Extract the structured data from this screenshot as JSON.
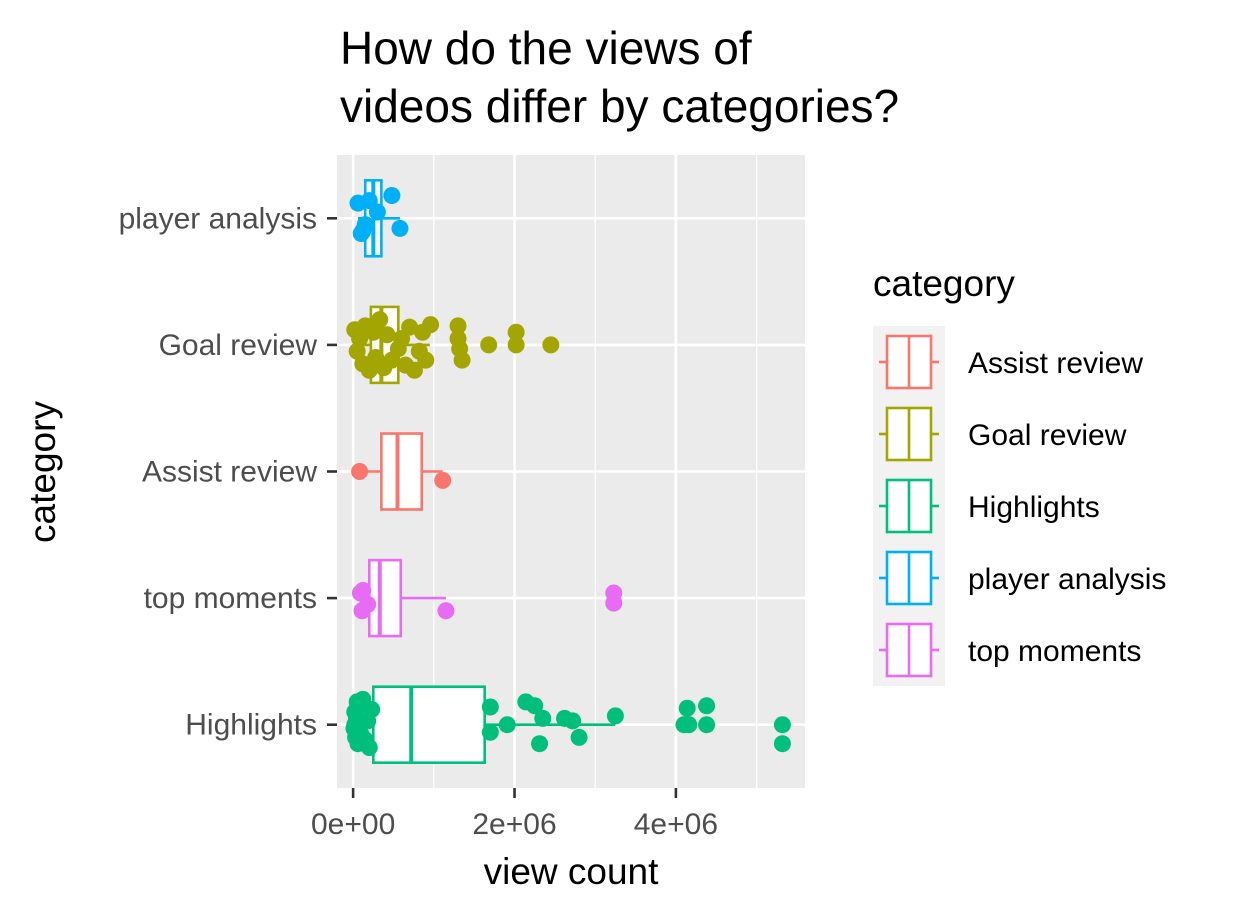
{
  "chart_data": {
    "type": "boxplot",
    "title": [
      "How do the views of",
      "videos differ by categories?"
    ],
    "xlabel": "view count",
    "ylabel": "category",
    "xlim": [
      -200000,
      5600000
    ],
    "x_ticks": [
      0,
      2000000,
      4000000
    ],
    "x_tick_labels": [
      "0e+00",
      "2e+06",
      "4e+06"
    ],
    "orientation": "horizontal",
    "grid": true,
    "legend": {
      "title": "category",
      "placement": "right",
      "entries": [
        {
          "label": "Assist review",
          "color": "#F8766D"
        },
        {
          "label": "Goal review",
          "color": "#A3A500"
        },
        {
          "label": "Highlights",
          "color": "#00BF7D"
        },
        {
          "label": "player analysis",
          "color": "#00B0F6"
        },
        {
          "label": "top moments",
          "color": "#E76BF3"
        }
      ]
    },
    "categories_top_to_bottom": [
      "player analysis",
      "Goal review",
      "Assist review",
      "top moments",
      "Highlights"
    ],
    "groups": [
      {
        "category": "player analysis",
        "color": "#00B0F6",
        "box": {
          "q1": 150000,
          "median": 250000,
          "q3": 350000,
          "whisker_low": 60000,
          "whisker_high": 580000
        },
        "points": [
          [
            100000,
            0.12
          ],
          [
            60000,
            -0.12
          ],
          [
            150000,
            0.05
          ],
          [
            300000,
            -0.05
          ],
          [
            480000,
            -0.18
          ],
          [
            580000,
            0.08
          ],
          [
            200000,
            -0.14
          ],
          [
            120000,
            0.1
          ]
        ]
      },
      {
        "category": "Goal review",
        "color": "#A3A500",
        "box": {
          "q1": 220000,
          "median": 350000,
          "q3": 560000,
          "whisker_low": 10000,
          "whisker_high": 950000
        },
        "points": [
          [
            20000,
            -0.12
          ],
          [
            50000,
            0.05
          ],
          [
            80000,
            -0.05
          ],
          [
            120000,
            0.15
          ],
          [
            150000,
            -0.15
          ],
          [
            200000,
            0.2
          ],
          [
            250000,
            -0.1
          ],
          [
            280000,
            0.1
          ],
          [
            330000,
            -0.2
          ],
          [
            380000,
            0.18
          ],
          [
            420000,
            -0.08
          ],
          [
            480000,
            0.12
          ],
          [
            560000,
            0.03
          ],
          [
            600000,
            -0.05
          ],
          [
            650000,
            0.16
          ],
          [
            700000,
            -0.14
          ],
          [
            760000,
            0.2
          ],
          [
            820000,
            0.05
          ],
          [
            860000,
            -0.1
          ],
          [
            900000,
            0.12
          ],
          [
            960000,
            -0.16
          ],
          [
            1300000,
            -0.05
          ],
          [
            1320000,
            0.03
          ],
          [
            1350000,
            0.12
          ],
          [
            1300000,
            -0.15
          ],
          [
            1680000,
            0.0
          ],
          [
            2020000,
            -0.1
          ],
          [
            2020000,
            0.0
          ],
          [
            2450000,
            0.0
          ]
        ]
      },
      {
        "category": "Assist review",
        "color": "#F8766D",
        "box": {
          "q1": 350000,
          "median": 550000,
          "q3": 850000,
          "whisker_low": 80000,
          "whisker_high": 1110000
        },
        "points": [
          [
            80000,
            0.0
          ],
          [
            1110000,
            0.07
          ]
        ]
      },
      {
        "category": "top moments",
        "color": "#E76BF3",
        "box": {
          "q1": 200000,
          "median": 330000,
          "q3": 590000,
          "whisker_low": 80000,
          "whisker_high": 1150000
        },
        "points": [
          [
            110000,
            0.1
          ],
          [
            90000,
            -0.04
          ],
          [
            120000,
            -0.06
          ],
          [
            180000,
            0.05
          ],
          [
            1150000,
            0.1
          ],
          [
            3230000,
            0.04
          ],
          [
            3230000,
            -0.04
          ]
        ]
      },
      {
        "category": "Highlights",
        "color": "#00BF7D",
        "box": {
          "q1": 250000,
          "median": 720000,
          "q3": 1630000,
          "whisker_low": 0,
          "whisker_high": 3250000
        },
        "points": [
          [
            10000,
            0.03
          ],
          [
            20000,
            -0.1
          ],
          [
            30000,
            0.1
          ],
          [
            40000,
            -0.05
          ],
          [
            60000,
            0.15
          ],
          [
            80000,
            -0.15
          ],
          [
            100000,
            0.08
          ],
          [
            120000,
            -0.2
          ],
          [
            150000,
            0.12
          ],
          [
            180000,
            -0.03
          ],
          [
            200000,
            0.18
          ],
          [
            230000,
            -0.12
          ],
          [
            20000,
            0.0
          ],
          [
            50000,
            -0.18
          ],
          [
            1700000,
            0.06
          ],
          [
            1700000,
            -0.14
          ],
          [
            1910000,
            0.0
          ],
          [
            2140000,
            -0.18
          ],
          [
            2250000,
            -0.15
          ],
          [
            2310000,
            0.15
          ],
          [
            2350000,
            -0.05
          ],
          [
            2620000,
            -0.05
          ],
          [
            2720000,
            -0.03
          ],
          [
            2800000,
            0.1
          ],
          [
            3250000,
            -0.07
          ],
          [
            4100000,
            0.0
          ],
          [
            4160000,
            0.0
          ],
          [
            4140000,
            -0.13
          ],
          [
            4380000,
            0.0
          ],
          [
            4380000,
            -0.15
          ],
          [
            5320000,
            0.15
          ],
          [
            5320000,
            0.0
          ]
        ]
      }
    ]
  }
}
